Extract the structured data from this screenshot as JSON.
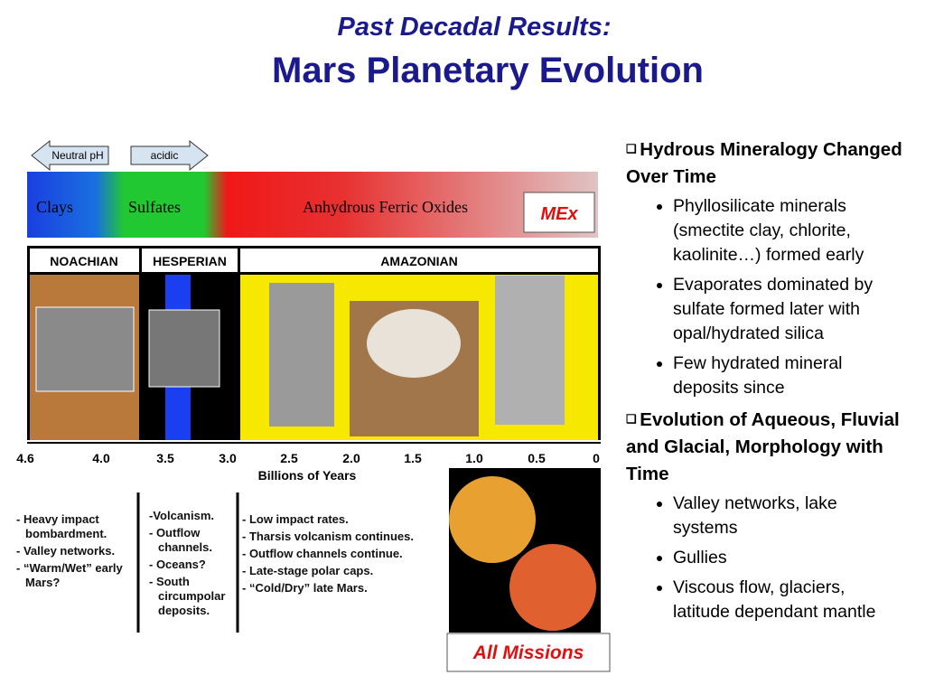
{
  "title": {
    "line1": "Past Decadal Results:",
    "line2": "Mars Planetary Evolution"
  },
  "figure": {
    "ph_labels": [
      "Neutral pH",
      "acidic"
    ],
    "bands": [
      "Clays",
      "Sulfates",
      "Anhydrous Ferric Oxides"
    ],
    "mex_label": "MEx",
    "eras": [
      "NOACHIAN",
      "HESPERIAN",
      "AMAZONIAN"
    ],
    "axis_ticks": [
      "4.6",
      "4.0",
      "3.5",
      "3.0",
      "2.5",
      "2.0",
      "1.5",
      "1.0",
      "0.5",
      "0"
    ],
    "axis_label": "Billions of Years",
    "era_notes": [
      [
        "- Heavy impact bombardment.",
        "- Valley networks.",
        "- “Warm/Wet” early Mars?"
      ],
      [
        "-Volcanism.",
        "- Outflow channels.",
        "- Oceans?",
        "- South circumpolar deposits."
      ],
      [
        "- Low impact rates.",
        "- Tharsis volcanism continues.",
        "- Outflow channels continue.",
        "- Late-stage polar caps.",
        "- “Cold/Dry” late Mars."
      ]
    ],
    "missions_label": "All Missions"
  },
  "bullets": [
    {
      "heading": "Hydrous Mineralogy Changed Over Time",
      "items": [
        "Phyllosilicate minerals (smectite clay, chlorite, kaolinite…) formed early",
        "Evaporates dominated by sulfate formed later with opal/hydrated silica",
        "Few hydrated mineral deposits since"
      ]
    },
    {
      "heading": "Evolution of Aqueous, Fluvial and Glacial, Morphology with Time",
      "items": [
        "Valley networks, lake systems",
        "Gullies",
        "Viscous flow, glaciers, latitude dependant mantle"
      ]
    }
  ]
}
